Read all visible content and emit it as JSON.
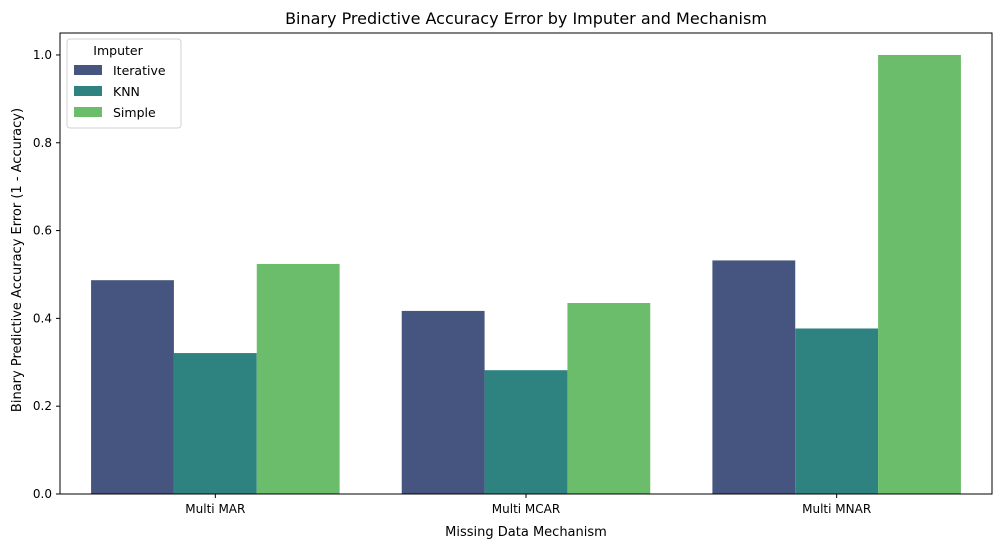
{
  "chart_data": {
    "type": "bar",
    "title": "Binary Predictive Accuracy Error by Imputer and Mechanism",
    "xlabel": "Missing Data Mechanism",
    "ylabel": "Binary Predictive Accuracy Error (1 - Accuracy)",
    "categories": [
      "Multi MAR",
      "Multi MCAR",
      "Multi MNAR"
    ],
    "ylim": [
      0,
      1.05
    ],
    "yticks": [
      "0.0",
      "0.2",
      "0.4",
      "0.6",
      "0.8",
      "1.0"
    ],
    "legend": {
      "title": "Imputer",
      "placement": "top-left"
    },
    "series": [
      {
        "name": "Iterative",
        "color": "#46557f",
        "values": [
          0.487,
          0.417,
          0.532
        ]
      },
      {
        "name": "KNN",
        "color": "#2e8380",
        "values": [
          0.321,
          0.282,
          0.377
        ]
      },
      {
        "name": "Simple",
        "color": "#6bbd6c",
        "values": [
          0.524,
          0.435,
          1.0
        ]
      }
    ]
  }
}
